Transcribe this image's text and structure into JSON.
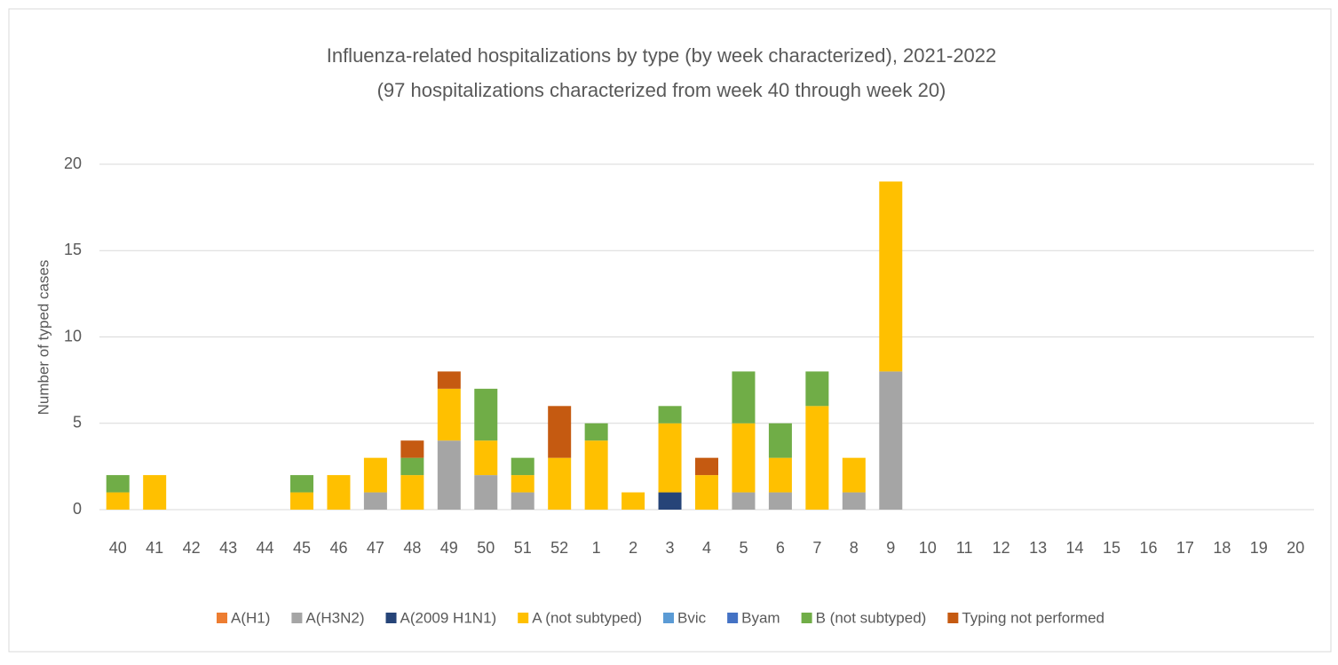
{
  "chart_data": {
    "type": "stacked_bar",
    "title": "Influenza-related hospitalizations by type (by week characterized), 2021-2022",
    "subtitle": "(97 hospitalizations characterized from week 40 through week 20)",
    "y_label": "Number of typed cases",
    "categories": [
      "40",
      "41",
      "42",
      "43",
      "44",
      "45",
      "46",
      "47",
      "48",
      "49",
      "50",
      "51",
      "52",
      "1",
      "2",
      "3",
      "4",
      "5",
      "6",
      "7",
      "8",
      "9",
      "10",
      "11",
      "12",
      "13",
      "14",
      "15",
      "16",
      "17",
      "18",
      "19",
      "20"
    ],
    "ylim": [
      0,
      20
    ],
    "yticks": [
      0,
      5,
      10,
      15,
      20
    ],
    "grid": true,
    "series": [
      {
        "name": "A(H1)",
        "color": "#ed7d31",
        "values": [
          0,
          0,
          0,
          0,
          0,
          0,
          0,
          0,
          0,
          0,
          0,
          0,
          0,
          0,
          0,
          0,
          0,
          0,
          0,
          0,
          0,
          0,
          0,
          0,
          0,
          0,
          0,
          0,
          0,
          0,
          0,
          0,
          0
        ]
      },
      {
        "name": "A(H3N2)",
        "color": "#a5a5a5",
        "values": [
          0,
          0,
          0,
          0,
          0,
          0,
          0,
          1,
          0,
          4,
          2,
          1,
          0,
          0,
          0,
          0,
          0,
          1,
          1,
          0,
          1,
          8,
          0,
          0,
          0,
          0,
          0,
          0,
          0,
          0,
          0,
          0,
          0
        ]
      },
      {
        "name": "A(2009 H1N1)",
        "color": "#264478",
        "values": [
          0,
          0,
          0,
          0,
          0,
          0,
          0,
          0,
          0,
          0,
          0,
          0,
          0,
          0,
          0,
          1,
          0,
          0,
          0,
          0,
          0,
          0,
          0,
          0,
          0,
          0,
          0,
          0,
          0,
          0,
          0,
          0,
          0
        ]
      },
      {
        "name": "A (not subtyped)",
        "color": "#ffc000",
        "values": [
          1,
          2,
          0,
          0,
          0,
          1,
          2,
          2,
          2,
          3,
          2,
          1,
          3,
          4,
          1,
          4,
          2,
          4,
          2,
          6,
          2,
          11,
          0,
          0,
          0,
          0,
          0,
          0,
          0,
          0,
          0,
          0,
          0
        ]
      },
      {
        "name": "Bvic",
        "color": "#5b9bd5",
        "values": [
          0,
          0,
          0,
          0,
          0,
          0,
          0,
          0,
          0,
          0,
          0,
          0,
          0,
          0,
          0,
          0,
          0,
          0,
          0,
          0,
          0,
          0,
          0,
          0,
          0,
          0,
          0,
          0,
          0,
          0,
          0,
          0,
          0
        ]
      },
      {
        "name": "Byam",
        "color": "#4472c4",
        "values": [
          0,
          0,
          0,
          0,
          0,
          0,
          0,
          0,
          0,
          0,
          0,
          0,
          0,
          0,
          0,
          0,
          0,
          0,
          0,
          0,
          0,
          0,
          0,
          0,
          0,
          0,
          0,
          0,
          0,
          0,
          0,
          0,
          0
        ]
      },
      {
        "name": "B (not subtyped)",
        "color": "#70ad47",
        "values": [
          1,
          0,
          0,
          0,
          0,
          1,
          0,
          0,
          1,
          0,
          3,
          1,
          0,
          1,
          0,
          1,
          0,
          3,
          2,
          2,
          0,
          0,
          0,
          0,
          0,
          0,
          0,
          0,
          0,
          0,
          0,
          0,
          0
        ]
      },
      {
        "name": "Typing not performed",
        "color": "#c55a11",
        "values": [
          0,
          0,
          0,
          0,
          0,
          0,
          0,
          0,
          1,
          1,
          0,
          0,
          3,
          0,
          0,
          0,
          1,
          0,
          0,
          0,
          0,
          0,
          0,
          0,
          0,
          0,
          0,
          0,
          0,
          0,
          0,
          0,
          0
        ]
      }
    ]
  }
}
